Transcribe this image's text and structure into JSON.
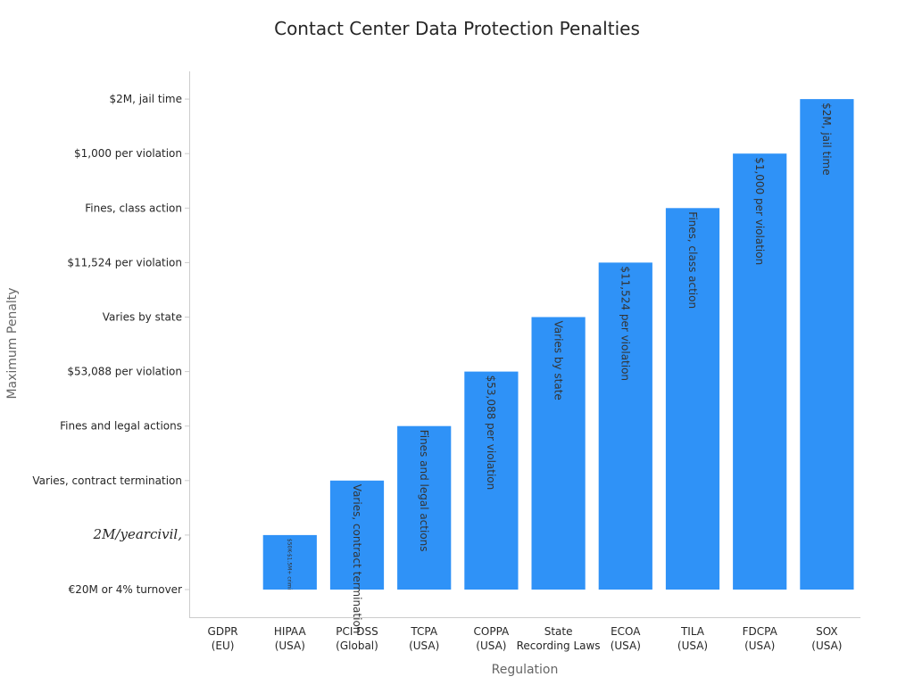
{
  "chart_data": {
    "type": "bar",
    "title": "Contact Center Data Protection Penalties",
    "xlabel": "Regulation",
    "ylabel": "Maximum Penalty",
    "categories": [
      "GDPR\n(EU)",
      "HIPAA\n(USA)",
      "PCI DSS\n(Global)",
      "TCPA\n(USA)",
      "COPPA\n(USA)",
      "State\nRecording Laws",
      "ECOA\n(USA)",
      "TILA\n(USA)",
      "FDCPA\n(USA)",
      "SOX\n(USA)"
    ],
    "y_tick_labels": [
      "€20M or 4% turnover",
      "2M/yearcivil,",
      "Varies, contract termination",
      "Fines and legal actions",
      "$53,088 per violation",
      "Varies by state",
      "$11,524 per violation",
      "Fines, class action",
      "$1,000 per violation",
      "$2M, jail time"
    ],
    "values": [
      0,
      1,
      2,
      3,
      4,
      5,
      6,
      7,
      8,
      9
    ],
    "data_labels": [
      "",
      "$50K-$1.5M+ crimi",
      "Varies, contract termination",
      "Fines and legal actions",
      "$53,088 per violation",
      "Varies by state",
      "$11,524 per violation",
      "Fines, class action",
      "$1,000 per violation",
      "$2M, jail time"
    ],
    "ylim": [
      -0.5,
      9.5
    ],
    "bar_color": "#2f92f7",
    "grid": false,
    "legend": "none"
  }
}
